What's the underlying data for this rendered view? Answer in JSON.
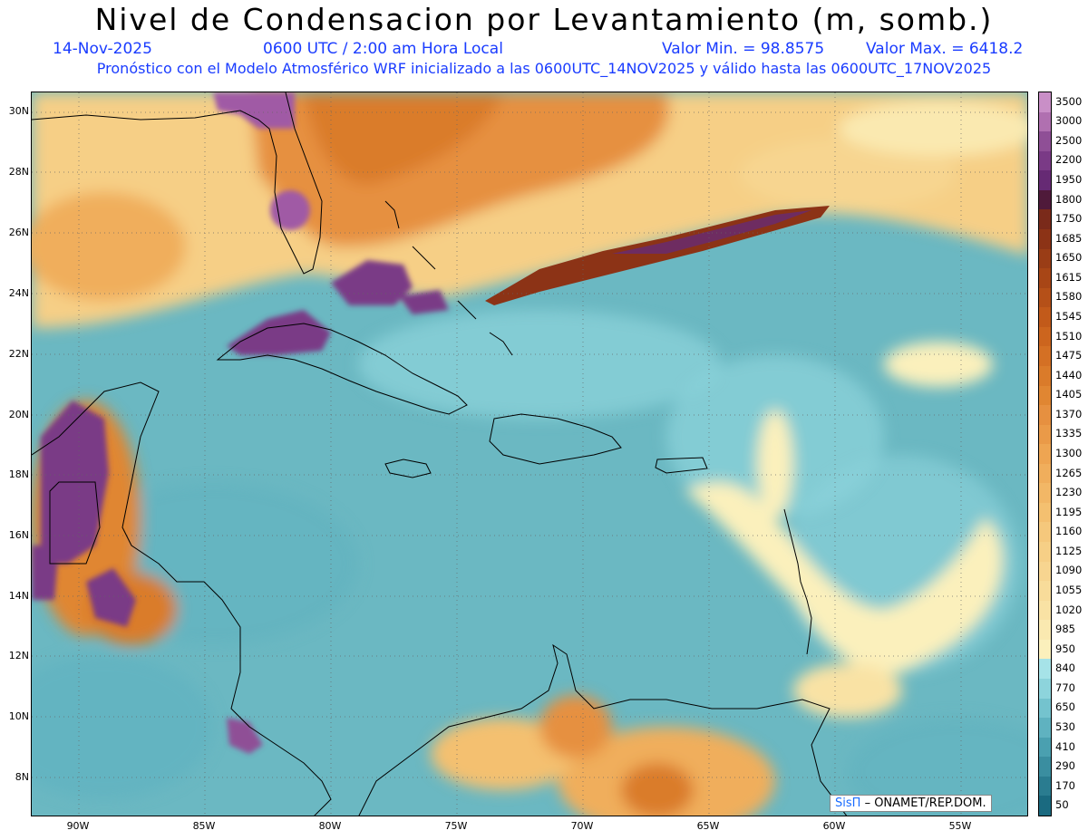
{
  "title": "Nivel de Condensacion por Levantamiento (m, somb.)",
  "date": "14-Nov-2025",
  "time": "0600 UTC / 2:00 am Hora Local",
  "valmin": "Valor Min. = 98.8575",
  "valmax": "Valor Max. = 6418.2",
  "forecast": "Pronóstico con el Modelo Atmosférico WRF inicializado a las 0600UTC_14NOV2025 y válido hasta las  0600UTC_17NOV2025",
  "lat_labels": [
    "30N",
    "28N",
    "26N",
    "24N",
    "22N",
    "20N",
    "18N",
    "16N",
    "14N",
    "12N",
    "10N",
    "8N"
  ],
  "lon_labels": [
    "90W",
    "85W",
    "80W",
    "75W",
    "70W",
    "65W",
    "60W",
    "55W"
  ],
  "colorbar": {
    "labels": [
      "3500",
      "3000",
      "2500",
      "2200",
      "1950",
      "1800",
      "1750",
      "1685",
      "1650",
      "1615",
      "1580",
      "1545",
      "1510",
      "1475",
      "1440",
      "1405",
      "1370",
      "1335",
      "1300",
      "1265",
      "1230",
      "1195",
      "1160",
      "1125",
      "1090",
      "1055",
      "1020",
      "985",
      "950",
      "840",
      "770",
      "650",
      "530",
      "410",
      "290",
      "170",
      "50"
    ],
    "colors": [
      "#c98fc7",
      "#b070b0",
      "#8f4f96",
      "#7a3a86",
      "#662a74",
      "#4f1a3a",
      "#7a2a1a",
      "#8c3316",
      "#9a3d16",
      "#a84616",
      "#b55018",
      "#c25a1a",
      "#cc651e",
      "#d47024",
      "#da7b2a",
      "#e08632",
      "#e69040",
      "#ea9a48",
      "#eea552",
      "#f0ae5c",
      "#f2b766",
      "#f4c070",
      "#f5c87c",
      "#f6cf86",
      "#f7d590",
      "#f8dc9a",
      "#f9e2a4",
      "#fae9b0",
      "#fbf0bc",
      "#a6e3e8",
      "#8dd4dc",
      "#74c3ce",
      "#5fb2c0",
      "#4aa0b0",
      "#3a8ea0",
      "#2a7c90",
      "#1a6a80"
    ]
  },
  "credit_sis": "SisΠ",
  "credit_rest": "– ONAMET/REP.DOM.",
  "colors": {
    "subtitle": "#1a3cff",
    "ocean": "#6bb8c2"
  }
}
